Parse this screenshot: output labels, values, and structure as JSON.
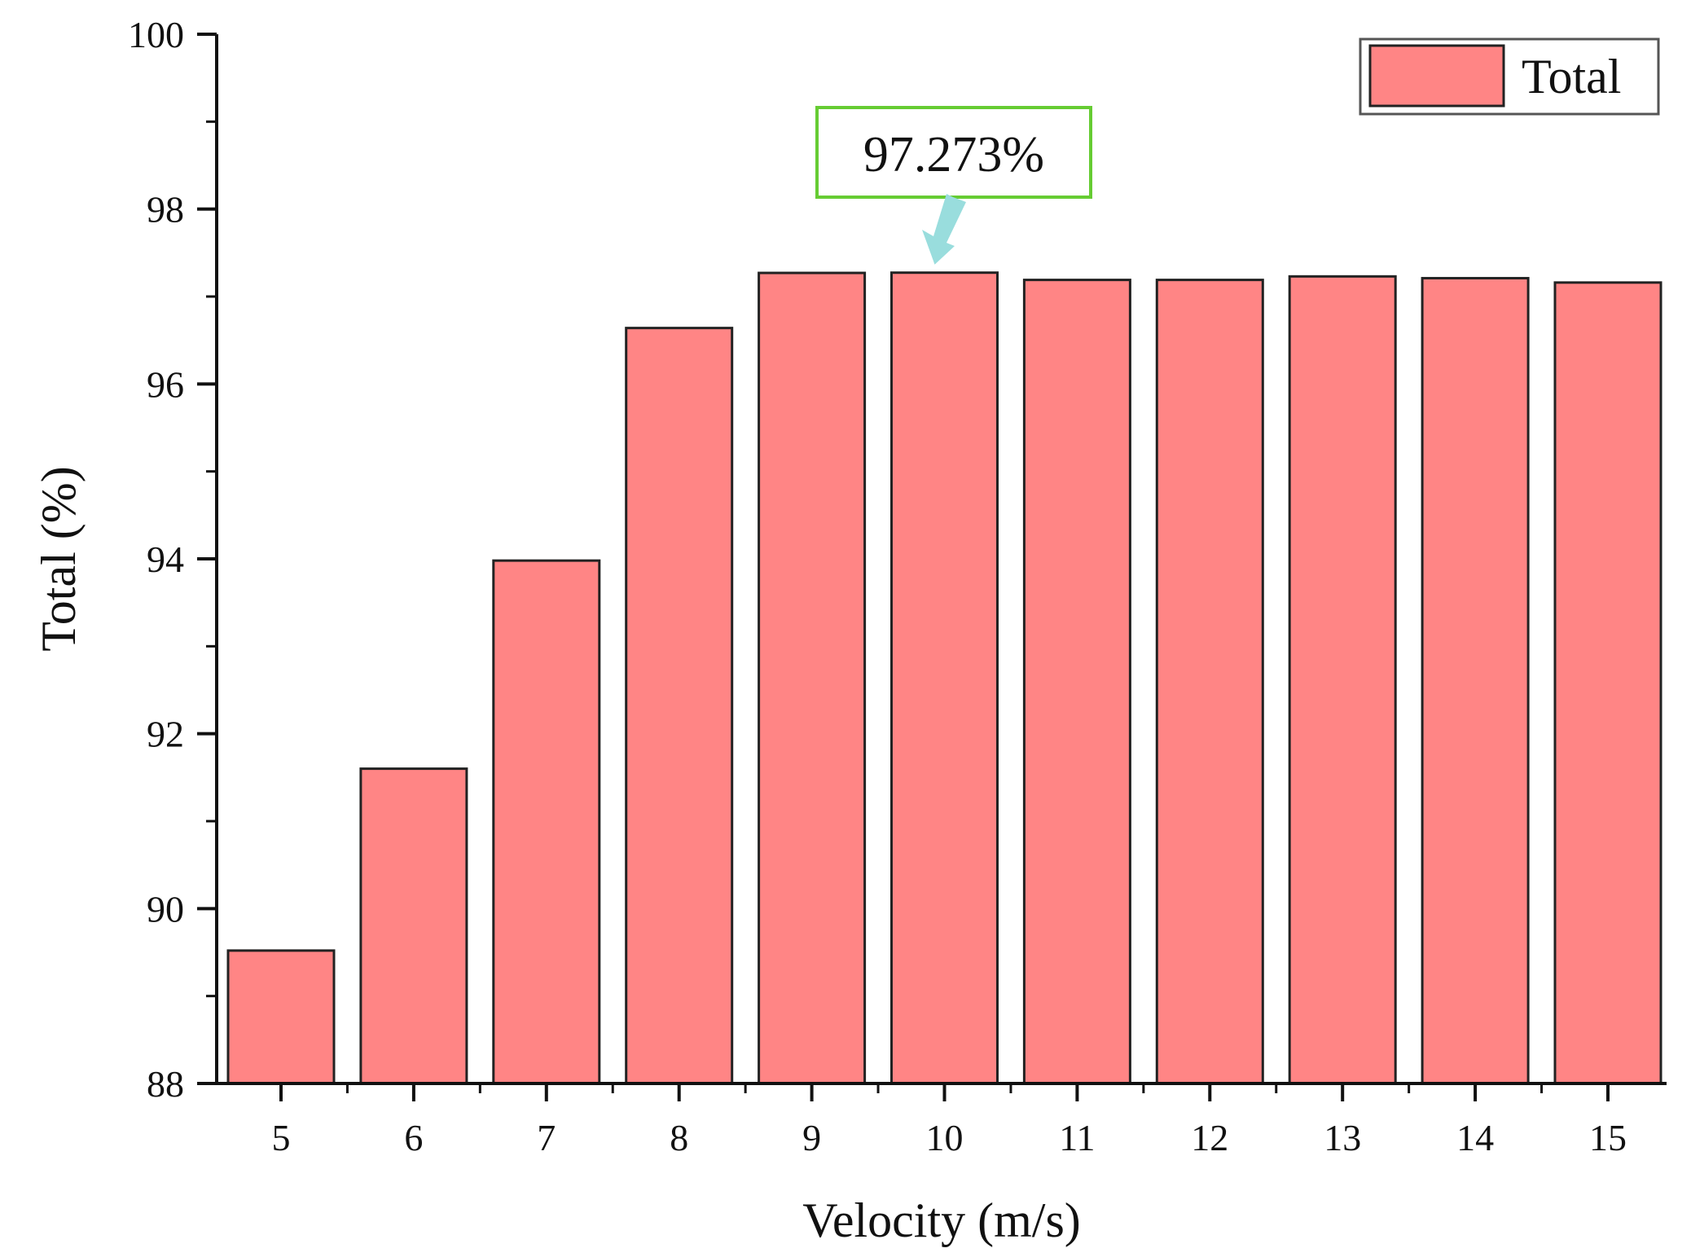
{
  "chart_data": {
    "type": "bar",
    "categories": [
      "5",
      "6",
      "7",
      "8",
      "9",
      "10",
      "11",
      "12",
      "13",
      "14",
      "15"
    ],
    "series": [
      {
        "name": "Total",
        "values": [
          89.52,
          91.6,
          93.98,
          96.64,
          97.27,
          97.273,
          97.19,
          97.19,
          97.23,
          97.21,
          97.16
        ]
      }
    ],
    "xlabel": "Velocity (m/s)",
    "ylabel": "Total (%)",
    "ylim": [
      88,
      100
    ],
    "yticks": [
      88,
      90,
      92,
      94,
      96,
      98,
      100
    ],
    "grid": false,
    "legend": {
      "position": "top-right",
      "label": "Total"
    },
    "annotation": {
      "text": "97.273%",
      "category": "10",
      "value": 97.273
    },
    "colors": {
      "bar_fill": "#ff8585",
      "bar_stroke": "#222222",
      "callout_border": "#66cc33",
      "callout_arrow": "#99dddd"
    }
  }
}
